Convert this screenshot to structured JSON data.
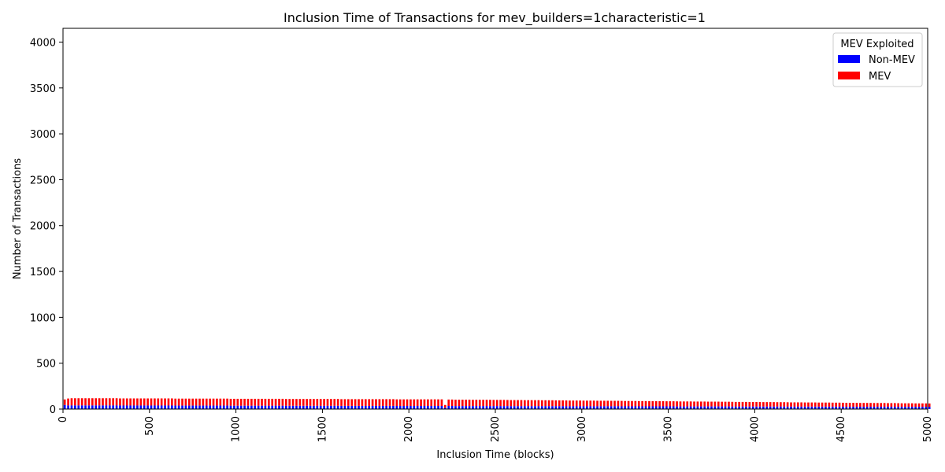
{
  "chart_data": {
    "type": "bar",
    "stacked": true,
    "title": "Inclusion Time of Transactions for mev_builders=1characteristic=1",
    "xlabel": "Inclusion Time (blocks)",
    "ylabel": "Number of Transactions",
    "xlim": [
      0,
      5000
    ],
    "ylim": [
      0,
      4150
    ],
    "xticks": [
      "0",
      "500",
      "1000",
      "1500",
      "2000",
      "2500",
      "3000",
      "3500",
      "4000",
      "4500",
      "5000"
    ],
    "yticks": [
      "0",
      "500",
      "1000",
      "1500",
      "2000",
      "2500",
      "3000",
      "3500",
      "4000"
    ],
    "legend": {
      "title": "MEV Exploited",
      "position": "top-right",
      "entries": [
        "Non-MEV",
        "MEV"
      ]
    },
    "x_start": 0,
    "x_step": 20,
    "series": [
      {
        "name": "Non-MEV",
        "color": "#0000ff",
        "values": [
          45,
          40,
          40,
          40,
          40,
          40,
          40,
          40,
          40,
          40,
          40,
          40,
          40,
          40,
          40,
          40,
          39,
          39,
          39,
          39,
          39,
          39,
          39,
          39,
          39,
          39,
          39,
          39,
          39,
          39,
          39,
          39,
          38,
          38,
          38,
          38,
          38,
          38,
          38,
          38,
          38,
          38,
          38,
          38,
          38,
          38,
          38,
          38,
          37,
          37,
          37,
          37,
          37,
          37,
          37,
          37,
          37,
          37,
          37,
          37,
          37,
          37,
          37,
          37,
          36,
          36,
          36,
          36,
          36,
          36,
          36,
          36,
          36,
          36,
          36,
          36,
          36,
          36,
          36,
          36,
          35,
          35,
          35,
          35,
          35,
          35,
          35,
          35,
          35,
          35,
          35,
          35,
          35,
          35,
          35,
          35,
          34,
          34,
          34,
          34,
          34,
          34,
          34,
          34,
          34,
          34,
          34,
          34,
          34,
          34,
          15,
          34,
          34,
          33,
          33,
          33,
          33,
          33,
          33,
          33,
          33,
          33,
          33,
          33,
          33,
          33,
          33,
          33,
          33,
          32,
          32,
          32,
          32,
          32,
          32,
          32,
          32,
          32,
          32,
          32,
          32,
          32,
          32,
          32,
          32,
          31,
          31,
          31,
          31,
          31,
          31,
          31,
          31,
          31,
          31,
          31,
          31,
          31,
          31,
          31,
          31,
          30,
          30,
          30,
          30,
          30,
          30,
          30,
          30,
          30,
          30,
          30,
          30,
          30,
          30,
          30,
          30,
          29,
          29,
          29,
          29,
          29,
          29,
          29,
          29,
          29,
          29,
          29,
          29,
          29,
          29,
          29,
          29,
          28,
          28,
          28,
          28,
          28,
          28,
          28,
          28,
          28,
          28,
          28,
          28,
          28,
          28,
          28,
          28,
          27,
          27,
          27,
          27,
          27,
          27,
          27,
          27,
          27,
          27,
          27,
          27,
          27,
          27,
          27,
          27,
          26,
          26,
          26,
          26,
          26,
          26,
          26,
          26,
          26,
          26,
          26,
          26,
          26,
          26,
          26,
          26,
          25,
          25,
          25,
          25,
          25,
          25,
          25,
          25,
          25,
          25
        ]
      },
      {
        "name": "MEV",
        "color": "#ff0000",
        "values": [
          60,
          75,
          78,
          78,
          78,
          78,
          78,
          78,
          78,
          78,
          78,
          78,
          78,
          78,
          78,
          78,
          77,
          77,
          77,
          77,
          77,
          77,
          77,
          77,
          77,
          77,
          77,
          77,
          77,
          77,
          77,
          77,
          76,
          76,
          76,
          76,
          76,
          76,
          76,
          76,
          76,
          76,
          76,
          76,
          76,
          76,
          76,
          76,
          75,
          75,
          75,
          75,
          75,
          75,
          75,
          75,
          75,
          75,
          75,
          75,
          75,
          75,
          75,
          75,
          74,
          74,
          74,
          74,
          74,
          74,
          74,
          74,
          74,
          74,
          74,
          74,
          74,
          74,
          74,
          74,
          73,
          73,
          73,
          73,
          73,
          73,
          73,
          73,
          73,
          73,
          73,
          73,
          73,
          73,
          73,
          73,
          72,
          72,
          72,
          72,
          72,
          72,
          72,
          72,
          72,
          72,
          72,
          72,
          72,
          72,
          30,
          70,
          70,
          69,
          69,
          69,
          69,
          69,
          68,
          68,
          68,
          68,
          68,
          68,
          67,
          67,
          67,
          67,
          66,
          66,
          66,
          66,
          66,
          65,
          65,
          65,
          65,
          65,
          64,
          64,
          64,
          64,
          63,
          63,
          63,
          63,
          62,
          62,
          62,
          62,
          61,
          61,
          61,
          61,
          60,
          60,
          60,
          60,
          59,
          59,
          59,
          59,
          58,
          58,
          58,
          58,
          57,
          57,
          57,
          57,
          56,
          56,
          56,
          56,
          55,
          55,
          55,
          55,
          54,
          54,
          54,
          54,
          53,
          53,
          53,
          53,
          52,
          52,
          52,
          52,
          51,
          51,
          51,
          51,
          50,
          50,
          50,
          50,
          49,
          49,
          49,
          49,
          48,
          48,
          48,
          48,
          47,
          47,
          47,
          47,
          46,
          46,
          46,
          46,
          45,
          45,
          45,
          45,
          44,
          44,
          44,
          44,
          43,
          43,
          43,
          43,
          42,
          42,
          42,
          42,
          41,
          41,
          41,
          41,
          40,
          40,
          40,
          40,
          39,
          39,
          39,
          39,
          38,
          38,
          38,
          38,
          37,
          37,
          37,
          37,
          36,
          36,
          36,
          36,
          35,
          35,
          35,
          35,
          34,
          34,
          34,
          34,
          33,
          33,
          33,
          33,
          32,
          32,
          32,
          32,
          31,
          31
        ]
      }
    ]
  }
}
